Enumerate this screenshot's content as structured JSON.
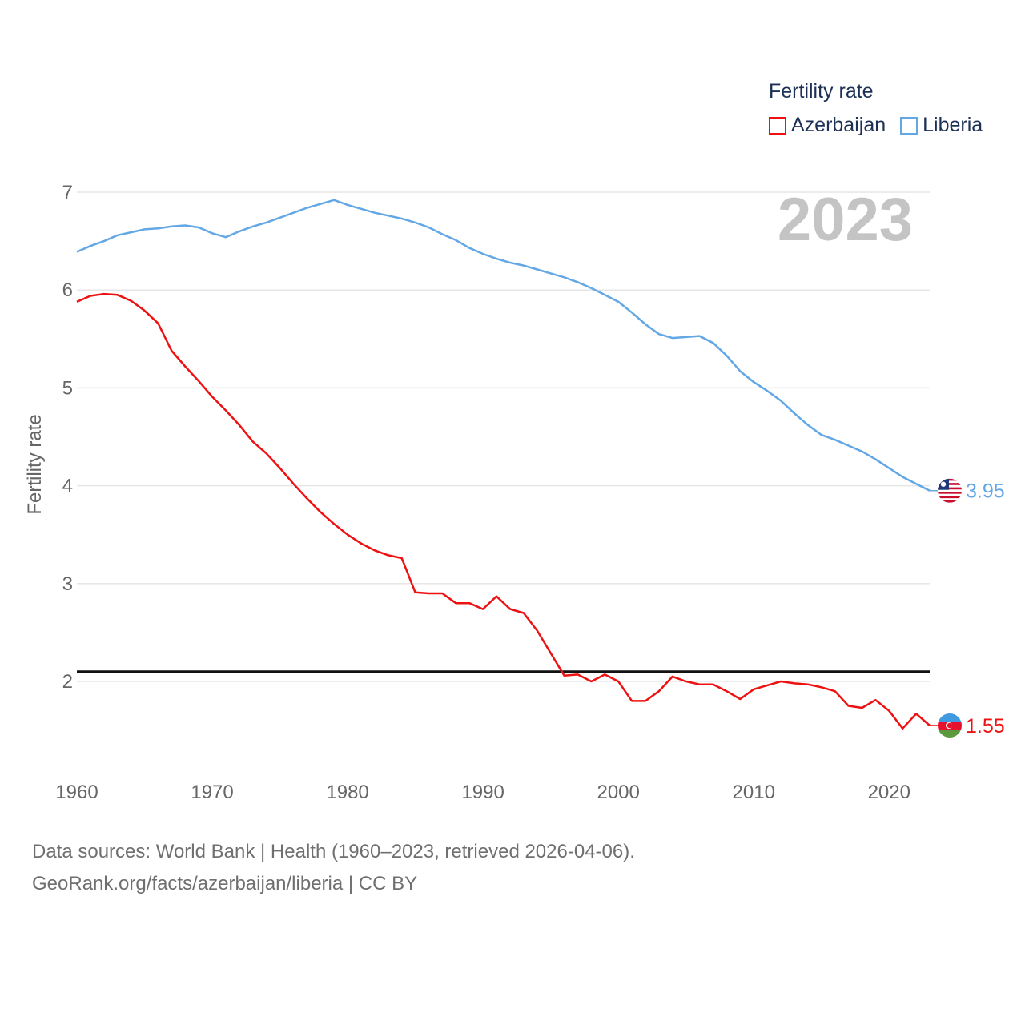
{
  "legend": {
    "title": "Fertility rate",
    "items": [
      {
        "label": "Azerbaijan",
        "color": "#ee1111"
      },
      {
        "label": "Liberia",
        "color": "#63a7e5"
      }
    ]
  },
  "footer": {
    "line1": "Data sources: World Bank | Health (1960–2023, retrieved 2026-04-06).",
    "line2": "GeoRank.org/facts/azerbaijan/liberia | CC BY"
  },
  "chart_data": {
    "type": "line",
    "title": "Fertility rate",
    "year_label": "2023",
    "xlabel": "",
    "ylabel": "Fertility rate",
    "xlim": [
      1960,
      2023
    ],
    "ylim": [
      1.0,
      7.1
    ],
    "x_ticks": [
      1960,
      1970,
      1980,
      1990,
      2000,
      2010,
      2020
    ],
    "y_ticks": [
      2,
      3,
      4,
      5,
      6,
      7
    ],
    "reference_line": 2.1,
    "x": [
      1960,
      1961,
      1962,
      1963,
      1964,
      1965,
      1966,
      1967,
      1968,
      1969,
      1970,
      1971,
      1972,
      1973,
      1974,
      1975,
      1976,
      1977,
      1978,
      1979,
      1980,
      1981,
      1982,
      1983,
      1984,
      1985,
      1986,
      1987,
      1988,
      1989,
      1990,
      1991,
      1992,
      1993,
      1994,
      1995,
      1996,
      1997,
      1998,
      1999,
      2000,
      2001,
      2002,
      2003,
      2004,
      2005,
      2006,
      2007,
      2008,
      2009,
      2010,
      2011,
      2012,
      2013,
      2014,
      2015,
      2016,
      2017,
      2018,
      2019,
      2020,
      2021,
      2022,
      2023
    ],
    "series": [
      {
        "name": "Azerbaijan",
        "color": "#ee1111",
        "end_label": "1.55",
        "values": [
          5.88,
          5.94,
          5.96,
          5.95,
          5.89,
          5.79,
          5.66,
          5.38,
          5.22,
          5.07,
          4.91,
          4.77,
          4.62,
          4.45,
          4.33,
          4.18,
          4.02,
          3.87,
          3.73,
          3.61,
          3.5,
          3.41,
          3.34,
          3.29,
          3.26,
          2.91,
          2.9,
          2.9,
          2.8,
          2.8,
          2.74,
          2.87,
          2.74,
          2.7,
          2.52,
          2.29,
          2.06,
          2.07,
          2.0,
          2.07,
          2.0,
          1.8,
          1.8,
          1.9,
          2.05,
          2.0,
          1.97,
          1.97,
          1.9,
          1.82,
          1.92,
          1.96,
          2.0,
          1.98,
          1.97,
          1.94,
          1.9,
          1.75,
          1.73,
          1.81,
          1.7,
          1.52,
          1.67,
          1.55
        ]
      },
      {
        "name": "Liberia",
        "color": "#63a7e5",
        "end_label": "3.95",
        "values": [
          6.39,
          6.45,
          6.5,
          6.56,
          6.59,
          6.62,
          6.63,
          6.65,
          6.66,
          6.64,
          6.58,
          6.54,
          6.6,
          6.65,
          6.69,
          6.74,
          6.79,
          6.84,
          6.88,
          6.92,
          6.87,
          6.83,
          6.79,
          6.76,
          6.73,
          6.69,
          6.64,
          6.57,
          6.51,
          6.43,
          6.37,
          6.32,
          6.28,
          6.25,
          6.21,
          6.17,
          6.13,
          6.08,
          6.02,
          5.95,
          5.88,
          5.77,
          5.65,
          5.55,
          5.51,
          5.52,
          5.53,
          5.46,
          5.33,
          5.17,
          5.06,
          4.97,
          4.87,
          4.74,
          4.62,
          4.52,
          4.47,
          4.41,
          4.35,
          4.27,
          4.18,
          4.09,
          4.02,
          3.95
        ]
      }
    ]
  }
}
